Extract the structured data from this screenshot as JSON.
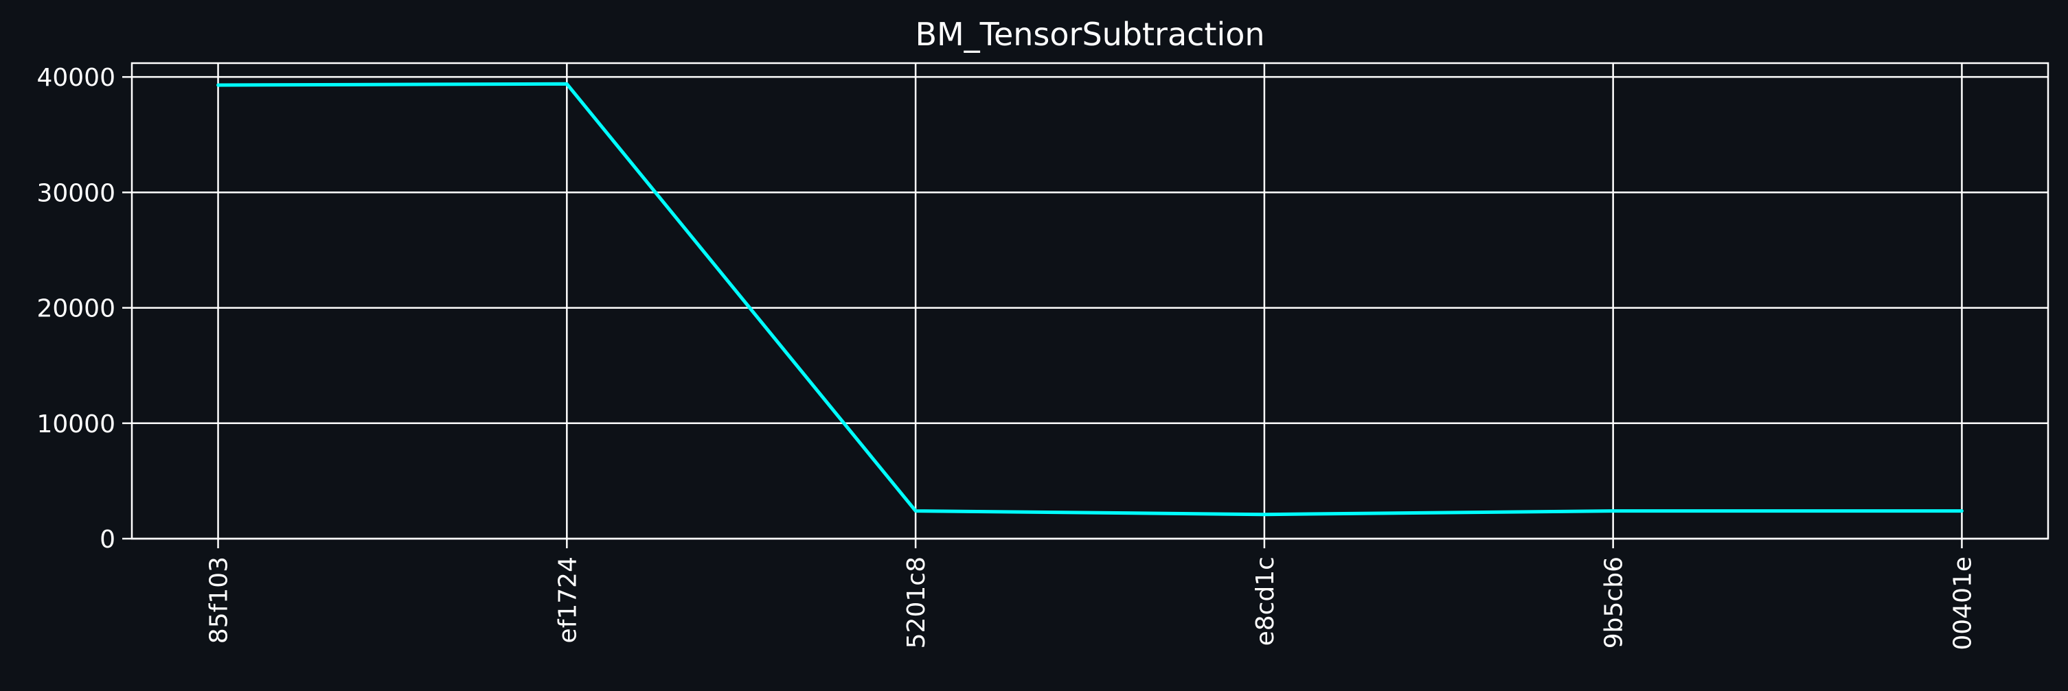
{
  "chart_data": {
    "type": "line",
    "title": "BM_TensorSubtraction",
    "xlabel": "",
    "ylabel": "",
    "categories": [
      "85f103",
      "ef1724",
      "5201c8",
      "e8cd1c",
      "9b5cb6",
      "00401e"
    ],
    "series": [
      {
        "values": [
          39300,
          39400,
          2400,
          2100,
          2400,
          2400
        ]
      }
    ],
    "ylim": [
      0,
      41200
    ],
    "yticks": [
      0,
      10000,
      20000,
      30000,
      40000
    ],
    "ytick_labels": [
      "0",
      "10000",
      "20000",
      "30000",
      "40000"
    ],
    "grid": true,
    "legend": "none"
  },
  "colors": {
    "background": "#0d1117",
    "line": "#00ffff",
    "grid": "#ffffff",
    "text": "#ffffff"
  }
}
